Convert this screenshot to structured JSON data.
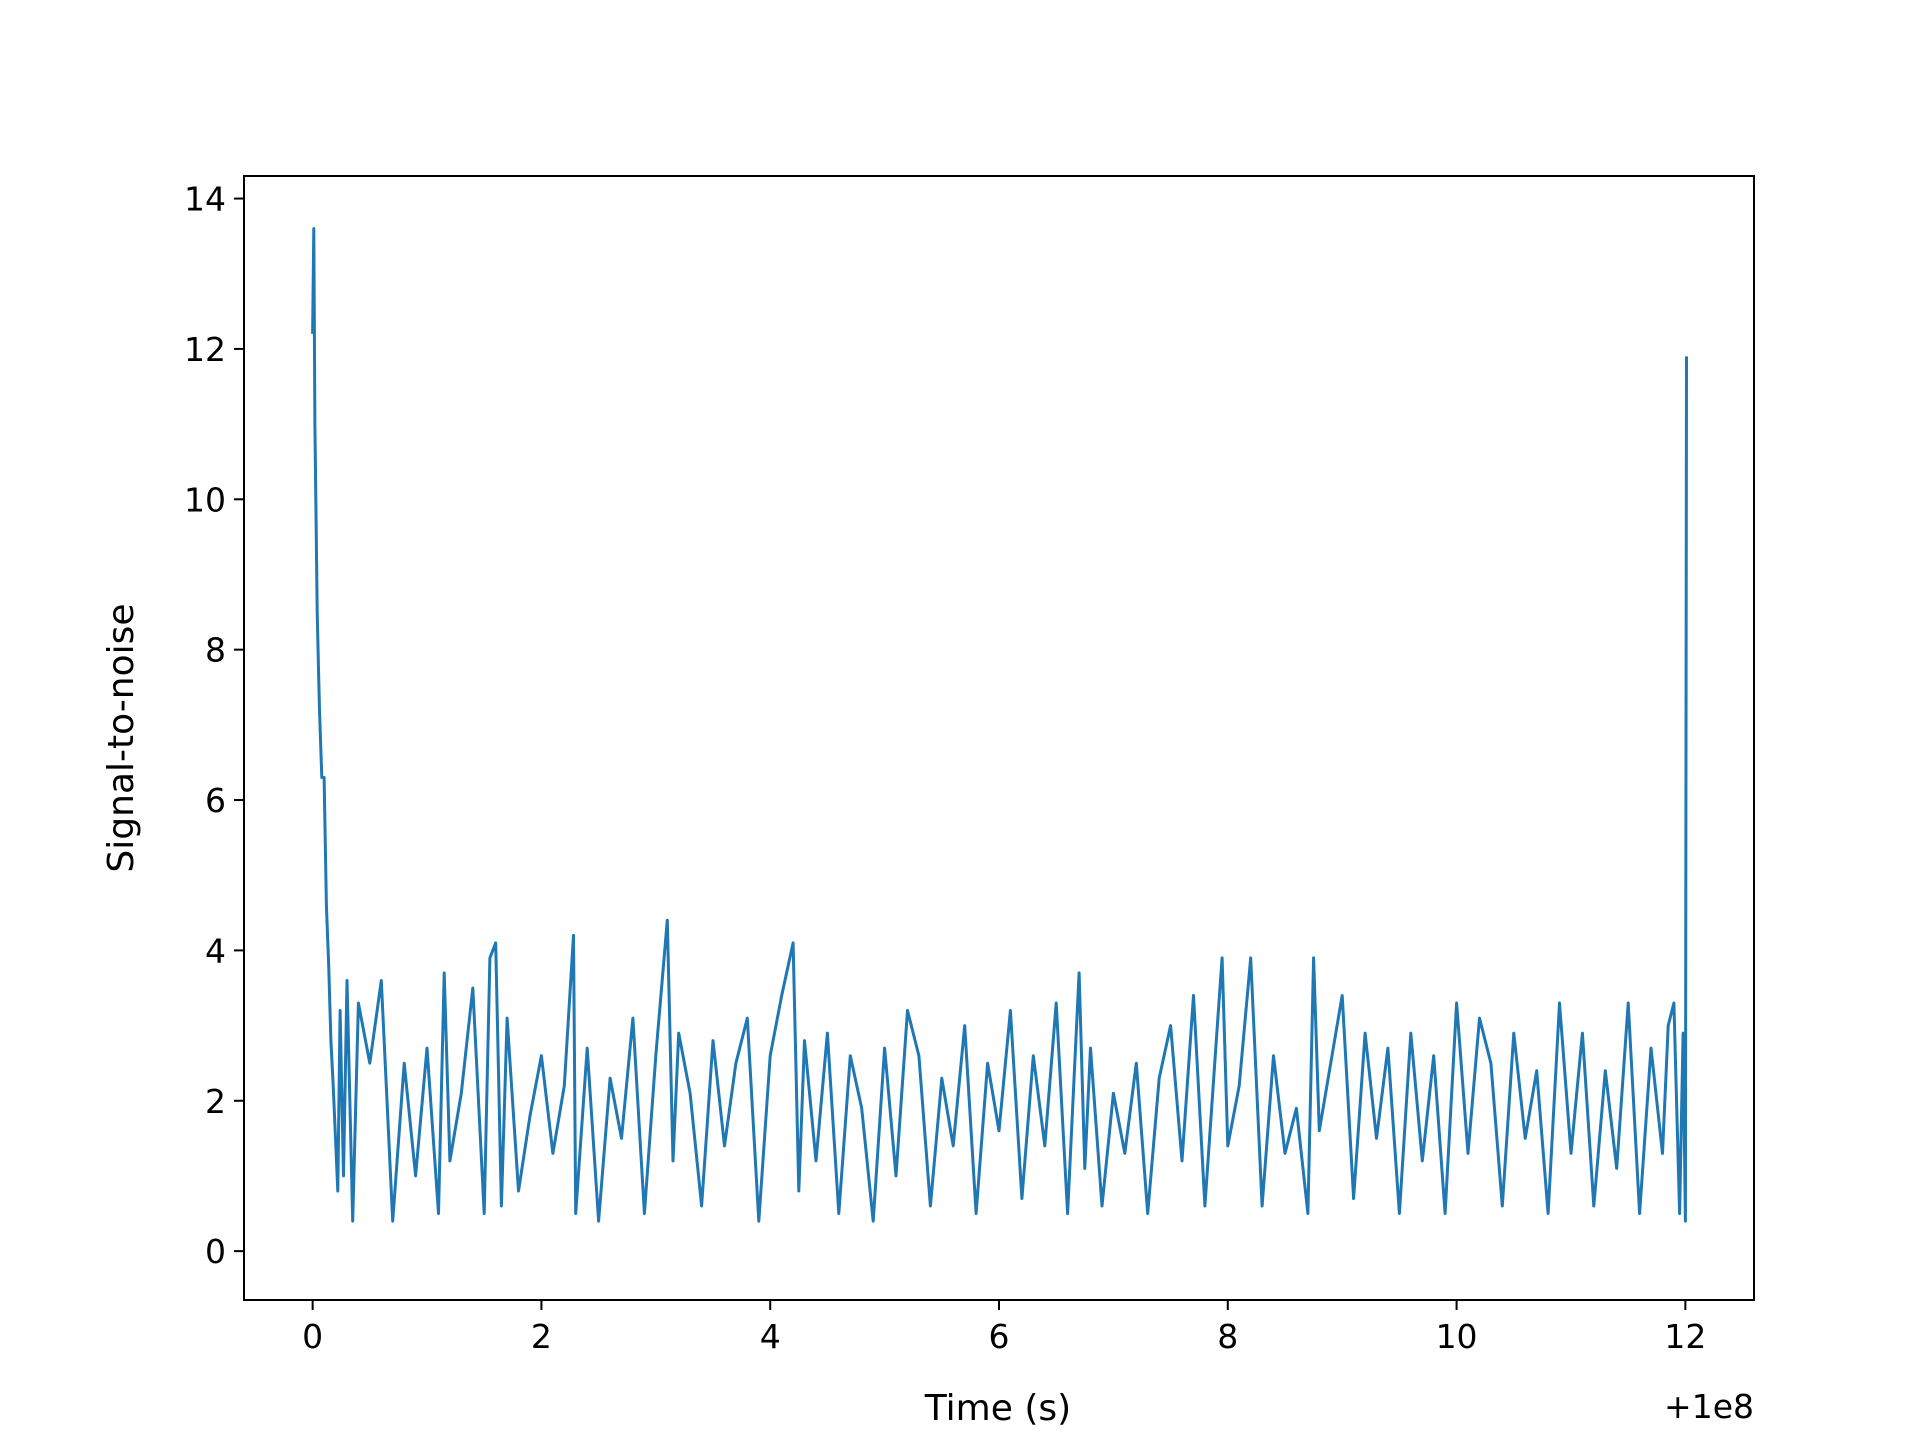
{
  "chart_data": {
    "type": "line",
    "title": "",
    "xlabel": "Time (s)",
    "ylabel": "Signal-to-noise",
    "x_offset_label": "+1e8",
    "xlim": [
      -0.6,
      12.6
    ],
    "ylim": [
      -0.65,
      14.3
    ],
    "xticks": [
      0,
      2,
      4,
      6,
      8,
      10,
      12
    ],
    "xtick_labels": [
      "0",
      "2",
      "4",
      "6",
      "8",
      "10",
      "12"
    ],
    "yticks": [
      0,
      2,
      4,
      6,
      8,
      10,
      12,
      14
    ],
    "ytick_labels": [
      "0",
      "2",
      "4",
      "6",
      "8",
      "10",
      "12",
      "14"
    ],
    "grid": false,
    "legend": "none",
    "line_color": "#1f77b4",
    "series": [
      {
        "x": [
          0.0,
          0.01,
          0.02,
          0.03,
          0.04,
          0.05,
          0.06,
          0.08,
          0.1,
          0.12,
          0.14,
          0.16,
          0.18,
          0.2,
          0.22,
          0.24,
          0.27,
          0.3,
          0.35,
          0.4,
          0.5,
          0.6,
          0.7,
          0.8,
          0.9,
          1.0,
          1.1,
          1.15,
          1.2,
          1.3,
          1.4,
          1.5,
          1.55,
          1.6,
          1.65,
          1.7,
          1.8,
          1.9,
          2.0,
          2.1,
          2.2,
          2.28,
          2.3,
          2.4,
          2.5,
          2.6,
          2.7,
          2.8,
          2.9,
          3.0,
          3.1,
          3.15,
          3.2,
          3.3,
          3.4,
          3.5,
          3.6,
          3.7,
          3.8,
          3.9,
          4.0,
          4.1,
          4.2,
          4.25,
          4.3,
          4.4,
          4.5,
          4.6,
          4.7,
          4.8,
          4.9,
          5.0,
          5.1,
          5.2,
          5.3,
          5.4,
          5.5,
          5.6,
          5.7,
          5.8,
          5.9,
          6.0,
          6.1,
          6.2,
          6.3,
          6.4,
          6.5,
          6.6,
          6.7,
          6.75,
          6.8,
          6.9,
          7.0,
          7.1,
          7.2,
          7.3,
          7.4,
          7.5,
          7.6,
          7.7,
          7.8,
          7.9,
          7.95,
          8.0,
          8.1,
          8.2,
          8.3,
          8.4,
          8.5,
          8.6,
          8.7,
          8.75,
          8.8,
          8.9,
          9.0,
          9.1,
          9.2,
          9.3,
          9.4,
          9.5,
          9.6,
          9.7,
          9.8,
          9.9,
          10.0,
          10.1,
          10.2,
          10.3,
          10.4,
          10.5,
          10.6,
          10.7,
          10.8,
          10.9,
          11.0,
          11.1,
          11.2,
          11.3,
          11.4,
          11.5,
          11.6,
          11.7,
          11.8,
          11.85,
          11.9,
          11.95,
          11.98,
          12.0,
          12.01
        ],
        "y": [
          12.2,
          13.6,
          11.0,
          9.7,
          8.5,
          7.8,
          7.2,
          6.3,
          6.3,
          4.6,
          3.8,
          2.8,
          2.2,
          1.5,
          0.8,
          3.2,
          1.0,
          3.6,
          0.4,
          3.3,
          2.5,
          3.6,
          0.4,
          2.5,
          1.0,
          2.7,
          0.5,
          3.7,
          1.2,
          2.1,
          3.5,
          0.5,
          3.9,
          4.1,
          0.6,
          3.1,
          0.8,
          1.8,
          2.6,
          1.3,
          2.2,
          4.2,
          0.5,
          2.7,
          0.4,
          2.3,
          1.5,
          3.1,
          0.5,
          2.6,
          4.4,
          1.2,
          2.9,
          2.1,
          0.6,
          2.8,
          1.4,
          2.5,
          3.1,
          0.4,
          2.6,
          3.4,
          4.1,
          0.8,
          2.8,
          1.2,
          2.9,
          0.5,
          2.6,
          1.9,
          0.4,
          2.7,
          1.0,
          3.2,
          2.6,
          0.6,
          2.3,
          1.4,
          3.0,
          0.5,
          2.5,
          1.6,
          3.2,
          0.7,
          2.6,
          1.4,
          3.3,
          0.5,
          3.7,
          1.1,
          2.7,
          0.6,
          2.1,
          1.3,
          2.5,
          0.5,
          2.3,
          3.0,
          1.2,
          3.4,
          0.6,
          2.8,
          3.9,
          1.4,
          2.2,
          3.9,
          0.6,
          2.6,
          1.3,
          1.9,
          0.5,
          3.9,
          1.6,
          2.5,
          3.4,
          0.7,
          2.9,
          1.5,
          2.7,
          0.5,
          2.9,
          1.2,
          2.6,
          0.5,
          3.3,
          1.3,
          3.1,
          2.5,
          0.6,
          2.9,
          1.5,
          2.4,
          0.5,
          3.3,
          1.3,
          2.9,
          0.6,
          2.4,
          1.1,
          3.3,
          0.5,
          2.7,
          1.3,
          3.0,
          3.3,
          0.5,
          2.9,
          0.4,
          11.9
        ]
      }
    ]
  }
}
